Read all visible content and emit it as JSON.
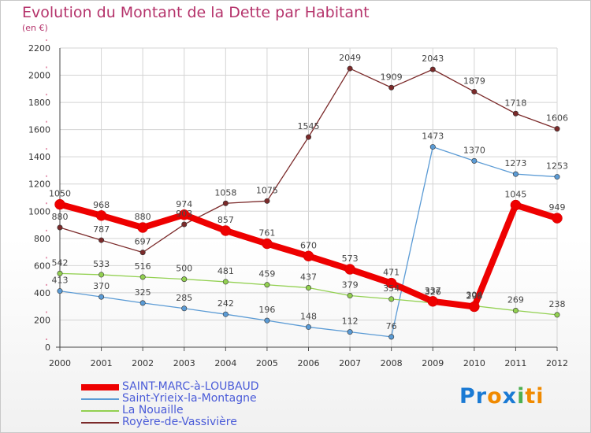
{
  "chart_data": {
    "type": "line",
    "title": "Evolution du Montant de la Dette par Habitant",
    "subtitle": "(en €)",
    "xlabel": "",
    "ylabel": "",
    "x": [
      "2000",
      "2001",
      "2002",
      "2003",
      "2004",
      "2005",
      "2006",
      "2007",
      "2008",
      "2009",
      "2010",
      "2011",
      "2012"
    ],
    "ylim": [
      0,
      2200
    ],
    "yticks": [
      0,
      200,
      400,
      600,
      800,
      1000,
      1200,
      1400,
      1600,
      1800,
      2000,
      2200
    ],
    "grid": true,
    "legend_position": "bottom-left",
    "series": [
      {
        "name": "SAINT-MARC-à-LOUBAUD",
        "color": "#ee0000",
        "values": [
          1050,
          968,
          880,
          974,
          857,
          761,
          670,
          573,
          471,
          337,
          298,
          1045,
          949
        ],
        "labels": [
          "1050",
          "968",
          "880",
          "974",
          "857",
          "761",
          "670",
          "573",
          "471",
          "337",
          "298",
          "1045",
          "949"
        ]
      },
      {
        "name": "Saint-Yrieix-la-Montagne",
        "color": "#5b9bd5",
        "values": [
          413,
          370,
          325,
          285,
          242,
          196,
          148,
          112,
          76,
          1473,
          1370,
          1273,
          1253
        ],
        "labels": [
          "413",
          "370",
          "325",
          "285",
          "242",
          "196",
          "148",
          "112",
          "76",
          "1473",
          "1370",
          "1273",
          "1253"
        ]
      },
      {
        "name": "La Nouaille",
        "color": "#92d050",
        "values": [
          542,
          533,
          516,
          500,
          481,
          459,
          437,
          379,
          354,
          326,
          304,
          269,
          238
        ],
        "labels": [
          "542",
          "533",
          "516",
          "500",
          "481",
          "459",
          "437",
          "379",
          "354",
          "326",
          "304",
          "269",
          "238"
        ]
      },
      {
        "name": "Royère-de-Vassivière",
        "color": "#7b2a2a",
        "values": [
          880,
          787,
          697,
          903,
          1058,
          1075,
          1545,
          2049,
          1909,
          2043,
          1879,
          1718,
          1606
        ],
        "labels": [
          "880",
          "787",
          "697",
          "903",
          "1058",
          "1075",
          "1545",
          "2049",
          "1909",
          "2043",
          "1879",
          "1718",
          "1606"
        ]
      }
    ]
  },
  "logo": {
    "parts": [
      "Pr",
      "o",
      "x",
      "i",
      "ti"
    ],
    "colors": [
      "#1a7ad4",
      "#f08a00",
      "#1a7ad4",
      "#4caf50",
      "#f08a00"
    ]
  }
}
